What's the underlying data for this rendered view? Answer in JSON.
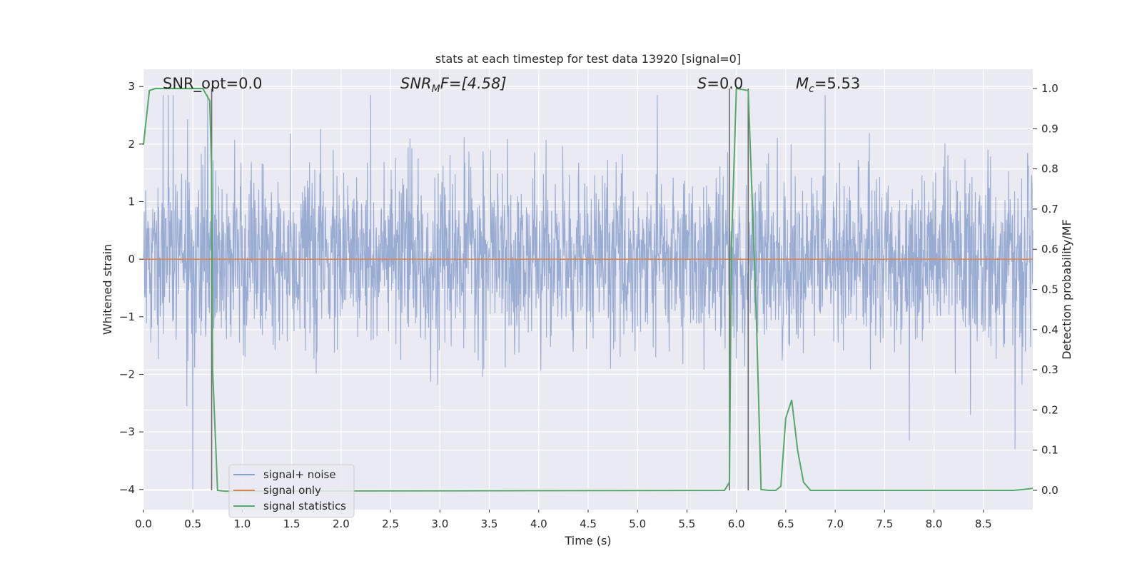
{
  "chart_data": {
    "type": "line",
    "title": "stats at each timestep for test data 13920 [signal=0]",
    "xlabel": "Time (s)",
    "ylabel": "Whitened strain",
    "ylabel_right": "Detection probability/MF",
    "xlim": [
      0.0,
      9.0
    ],
    "ylim": [
      -4.35,
      3.3
    ],
    "ylim_right": [
      -0.048,
      1.048
    ],
    "x_ticks": [
      "0.0",
      "0.5",
      "1.0",
      "1.5",
      "2.0",
      "2.5",
      "3.0",
      "3.5",
      "4.0",
      "4.5",
      "5.0",
      "5.5",
      "6.0",
      "6.5",
      "7.0",
      "7.5",
      "8.0",
      "8.5"
    ],
    "y_ticks": [
      "3",
      "2",
      "1",
      "0",
      "−1",
      "−2",
      "−3",
      "−4"
    ],
    "y_right_ticks": [
      "1.0",
      "0.9",
      "0.8",
      "0.7",
      "0.6",
      "0.5",
      "0.4",
      "0.3",
      "0.2",
      "0.1",
      "0.0"
    ],
    "grid": true,
    "legend_position": "lower-left",
    "legend": [
      "signal+ noise",
      "signal only",
      "signal statistics"
    ],
    "colors": {
      "noise": "#8aa0cc",
      "signal": "#dd8452",
      "stats": "#55a868",
      "vline": "#6b6b6b",
      "background": "#eaeaf2"
    },
    "annotations": {
      "snr_opt": "SNR_opt=0.0",
      "snr_mf_math": "SNR",
      "snr_mf_sub": "M",
      "snr_mf_rest": "F=[4.58]",
      "s_math": "S",
      "s_rest": "=0.0",
      "mc_math": "M",
      "mc_sub": "c",
      "mc_rest": "=5.53"
    },
    "vertical_lines_x": [
      0.69,
      5.93,
      6.12
    ],
    "series": [
      {
        "name": "signal+ noise",
        "axis": "left",
        "description_values": "Gaussian-like whitened strain noise, amplitude mostly within ±2, extremes near ±3 to −4",
        "peak_up_x": [
          0.2,
          0.25,
          0.3,
          0.65,
          2.3,
          5.2,
          6.9
        ],
        "peak_down_x": [
          0.5,
          5.93,
          7.75,
          8.82
        ],
        "peak_down_y": [
          -4.0,
          -2.4,
          -3.15,
          -3.3
        ]
      },
      {
        "name": "signal only",
        "axis": "left",
        "x": [
          0.0,
          9.0
        ],
        "y": [
          0.0,
          0.0
        ]
      },
      {
        "name": "signal statistics",
        "axis": "right",
        "x": [
          0.0,
          0.06,
          0.12,
          0.6,
          0.67,
          0.69,
          0.7,
          0.75,
          0.82,
          5.88,
          5.93,
          5.95,
          6.0,
          6.12,
          6.2,
          6.25,
          6.33,
          6.4,
          6.45,
          6.5,
          6.56,
          6.62,
          6.68,
          6.75,
          6.85,
          8.8,
          8.9,
          9.0
        ],
        "y": [
          0.86,
          0.995,
          1.0,
          1.0,
          0.97,
          0.8,
          0.3,
          0.0,
          -0.002,
          0.0,
          0.02,
          0.6,
          1.0,
          0.995,
          0.45,
          0.002,
          0.0,
          0.0,
          0.01,
          0.18,
          0.225,
          0.1,
          0.02,
          0.0,
          0.0,
          0.0,
          0.002,
          0.005
        ]
      }
    ]
  }
}
